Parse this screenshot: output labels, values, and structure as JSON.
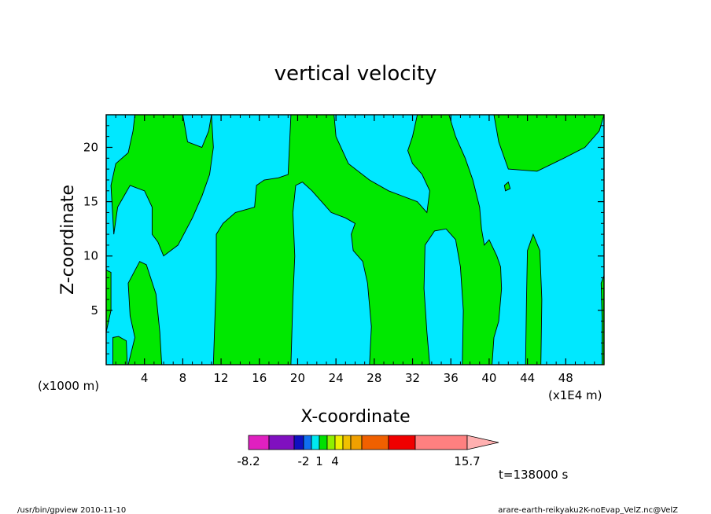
{
  "chart_data": {
    "type": "contour",
    "title": "vertical velocity",
    "xlabel": "X-coordinate",
    "ylabel": "Z-coordinate",
    "x_unit": "(x1000 m)",
    "x_unit_right": "(x1E4 m)",
    "xlim": [
      0,
      52
    ],
    "ylim": [
      0,
      23
    ],
    "x_ticks": [
      "4",
      "8",
      "12",
      "16",
      "20",
      "24",
      "28",
      "32",
      "36",
      "40",
      "44",
      "48"
    ],
    "y_ticks": [
      "5",
      "10",
      "15",
      "20"
    ],
    "colorbar": {
      "colors": [
        "#e020c0",
        "#8010c0",
        "#1010c0",
        "#1070f0",
        "#00e8f0",
        "#00e000",
        "#90f000",
        "#f0f000",
        "#f0c000",
        "#f0a000",
        "#f06000",
        "#f00000",
        "#ff8080",
        "#ffb0b0"
      ],
      "labels": [
        "-8.2",
        "-2",
        "1",
        "4",
        "15.7"
      ]
    },
    "time_label": "t=138000 s",
    "fill_colors": {
      "negative": "#00e8ff",
      "positive": "#00e800"
    }
  },
  "footer": {
    "left": "/usr/bin/gpview   2010-11-10",
    "right": "arare-earth-reikyaku2K-noEvap_VelZ.nc@VelZ"
  }
}
